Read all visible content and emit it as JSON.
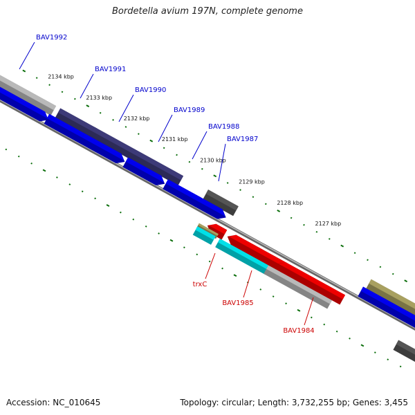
{
  "title": "Bordetella avium 197N, complete genome",
  "accession": "Accession: NC_010645",
  "topology": "Topology: circular; Length: 3,732,255 bp; Genes: 3,455",
  "colors": {
    "cds_forward": "#0000ee",
    "cds_reverse": "#ee0000",
    "blast_purple": "#3d3a78",
    "blast_grey_light": "#b9b9b9",
    "blast_grey_dark": "#555555",
    "blast_olive": "#a8a060",
    "trna_cyan": "#00e0e8",
    "backbone": "#888888",
    "ticks": "#0b6e0b",
    "forward_label": "#0000cc",
    "reverse_label": "#cc0000"
  },
  "ruler": [
    {
      "label": "2134 kbp"
    },
    {
      "label": "2133 kbp"
    },
    {
      "label": "2132 kbp"
    },
    {
      "label": "2131 kbp"
    },
    {
      "label": "2130 kbp"
    },
    {
      "label": "2129 kbp"
    },
    {
      "label": "2128 kbp"
    },
    {
      "label": "2127 kbp"
    }
  ],
  "gene_labels": [
    {
      "name": "BAV1992",
      "strand": "forward"
    },
    {
      "name": "BAV1991",
      "strand": "forward"
    },
    {
      "name": "BAV1990",
      "strand": "forward"
    },
    {
      "name": "BAV1989",
      "strand": "forward"
    },
    {
      "name": "BAV1988",
      "strand": "forward"
    },
    {
      "name": "BAV1987",
      "strand": "forward"
    },
    {
      "name": "trxC",
      "strand": "reverse"
    },
    {
      "name": "BAV1985",
      "strand": "reverse"
    },
    {
      "name": "BAV1984",
      "strand": "reverse"
    }
  ],
  "features": [
    {
      "type": "blast_grey_light"
    },
    {
      "type": "cds_forward"
    },
    {
      "type": "blast_purple"
    },
    {
      "type": "cds_forward"
    },
    {
      "type": "blast_purple"
    },
    {
      "type": "cds_forward"
    },
    {
      "type": "cds_forward"
    },
    {
      "type": "cds_forward"
    },
    {
      "type": "blast_grey_dark"
    },
    {
      "type": "cds_forward"
    },
    {
      "type": "cds_reverse"
    },
    {
      "type": "blast_olive"
    },
    {
      "type": "trna_cyan"
    },
    {
      "type": "cds_reverse"
    },
    {
      "type": "trna_cyan"
    },
    {
      "type": "cds_reverse"
    },
    {
      "type": "blast_grey_light"
    },
    {
      "type": "blast_olive"
    },
    {
      "type": "cds_forward"
    },
    {
      "type": "blast_grey_dark"
    }
  ]
}
